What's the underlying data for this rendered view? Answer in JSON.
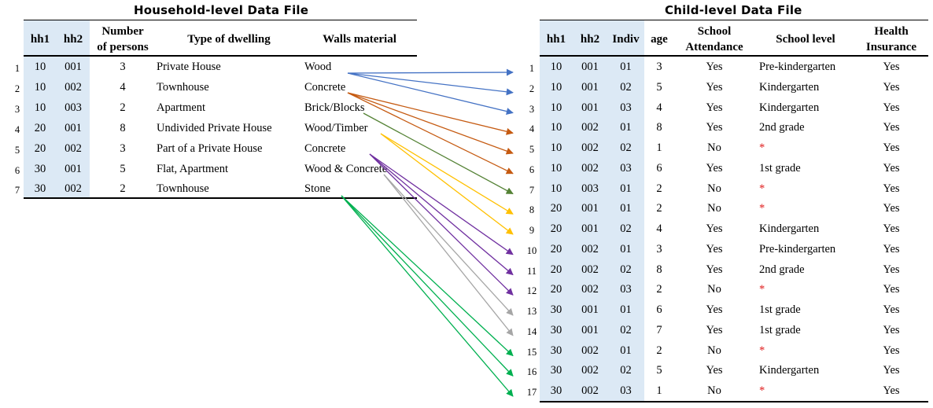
{
  "household": {
    "title": "Household-level Data File",
    "columns": [
      "hh1",
      "hh2",
      "Number of persons",
      "Type of dwelling",
      "Walls material"
    ],
    "header_lines": [
      [
        "hh1"
      ],
      [
        "hh2"
      ],
      [
        "Number",
        "of persons"
      ],
      [
        "Type of dwelling"
      ],
      [
        "Walls material"
      ]
    ],
    "rows": [
      {
        "n": "1",
        "hh1": "10",
        "hh2": "001",
        "persons": "3",
        "dwelling": "Private House",
        "walls": "Wood"
      },
      {
        "n": "2",
        "hh1": "10",
        "hh2": "002",
        "persons": "4",
        "dwelling": "Townhouse",
        "walls": "Concrete"
      },
      {
        "n": "3",
        "hh1": "10",
        "hh2": "003",
        "persons": "2",
        "dwelling": "Apartment",
        "walls": "Brick/Blocks"
      },
      {
        "n": "4",
        "hh1": "20",
        "hh2": "001",
        "persons": "8",
        "dwelling": "Undivided Private House",
        "walls": "Wood/Timber"
      },
      {
        "n": "5",
        "hh1": "20",
        "hh2": "002",
        "persons": "3",
        "dwelling": "Part of a Private House",
        "walls": "Concrete"
      },
      {
        "n": "6",
        "hh1": "30",
        "hh2": "001",
        "persons": "5",
        "dwelling": "Flat, Apartment",
        "walls": "Wood & Concrete"
      },
      {
        "n": "7",
        "hh1": "30",
        "hh2": "002",
        "persons": "2",
        "dwelling": "Townhouse",
        "walls": "Stone"
      }
    ]
  },
  "child": {
    "title": "Child-level Data File",
    "columns": [
      "hh1",
      "hh2",
      "Indiv",
      "age",
      "School Attendance",
      "School level",
      "Health Insurance"
    ],
    "header_lines": [
      [
        "hh1"
      ],
      [
        "hh2"
      ],
      [
        "Indiv"
      ],
      [
        "age"
      ],
      [
        "School",
        "Attendance"
      ],
      [
        "School level"
      ],
      [
        "Health",
        "Insurance"
      ]
    ],
    "rows": [
      {
        "n": "1",
        "hh1": "10",
        "hh2": "001",
        "indiv": "01",
        "age": "3",
        "attend": "Yes",
        "level": "Pre-kindergarten",
        "insurance": "Yes"
      },
      {
        "n": "2",
        "hh1": "10",
        "hh2": "001",
        "indiv": "02",
        "age": "5",
        "attend": "Yes",
        "level": "Kindergarten",
        "insurance": "Yes"
      },
      {
        "n": "3",
        "hh1": "10",
        "hh2": "001",
        "indiv": "03",
        "age": "4",
        "attend": "Yes",
        "level": "Kindergarten",
        "insurance": "Yes"
      },
      {
        "n": "4",
        "hh1": "10",
        "hh2": "002",
        "indiv": "01",
        "age": "8",
        "attend": "Yes",
        "level": "2nd grade",
        "insurance": "Yes"
      },
      {
        "n": "5",
        "hh1": "10",
        "hh2": "002",
        "indiv": "02",
        "age": "1",
        "attend": "No",
        "level": "*",
        "insurance": "Yes"
      },
      {
        "n": "6",
        "hh1": "10",
        "hh2": "002",
        "indiv": "03",
        "age": "6",
        "attend": "Yes",
        "level": "1st grade",
        "insurance": "Yes"
      },
      {
        "n": "7",
        "hh1": "10",
        "hh2": "003",
        "indiv": "01",
        "age": "2",
        "attend": "No",
        "level": "*",
        "insurance": "Yes"
      },
      {
        "n": "8",
        "hh1": "20",
        "hh2": "001",
        "indiv": "01",
        "age": "2",
        "attend": "No",
        "level": "*",
        "insurance": "Yes"
      },
      {
        "n": "9",
        "hh1": "20",
        "hh2": "001",
        "indiv": "02",
        "age": "4",
        "attend": "Yes",
        "level": "Kindergarten",
        "insurance": "Yes"
      },
      {
        "n": "10",
        "hh1": "20",
        "hh2": "002",
        "indiv": "01",
        "age": "3",
        "attend": "Yes",
        "level": "Pre-kindergarten",
        "insurance": "Yes"
      },
      {
        "n": "11",
        "hh1": "20",
        "hh2": "002",
        "indiv": "02",
        "age": "8",
        "attend": "Yes",
        "level": "2nd grade",
        "insurance": "Yes"
      },
      {
        "n": "12",
        "hh1": "20",
        "hh2": "002",
        "indiv": "03",
        "age": "2",
        "attend": "No",
        "level": "*",
        "insurance": "Yes"
      },
      {
        "n": "13",
        "hh1": "30",
        "hh2": "001",
        "indiv": "01",
        "age": "6",
        "attend": "Yes",
        "level": "1st grade",
        "insurance": "Yes"
      },
      {
        "n": "14",
        "hh1": "30",
        "hh2": "001",
        "indiv": "02",
        "age": "7",
        "attend": "Yes",
        "level": "1st grade",
        "insurance": "Yes"
      },
      {
        "n": "15",
        "hh1": "30",
        "hh2": "002",
        "indiv": "01",
        "age": "2",
        "attend": "No",
        "level": "*",
        "insurance": "Yes"
      },
      {
        "n": "16",
        "hh1": "30",
        "hh2": "002",
        "indiv": "02",
        "age": "5",
        "attend": "Yes",
        "level": "Kindergarten",
        "insurance": "Yes"
      },
      {
        "n": "17",
        "hh1": "30",
        "hh2": "002",
        "indiv": "03",
        "age": "1",
        "attend": "No",
        "level": "*",
        "insurance": "Yes"
      }
    ]
  },
  "links": [
    {
      "from": 1,
      "to": [
        1,
        2,
        3
      ],
      "color": "#4472c4"
    },
    {
      "from": 2,
      "to": [
        4,
        5,
        6
      ],
      "color": "#c55a11"
    },
    {
      "from": 3,
      "to": [
        7
      ],
      "color": "#548235"
    },
    {
      "from": 4,
      "to": [
        8,
        9
      ],
      "color": "#ffc000"
    },
    {
      "from": 5,
      "to": [
        10,
        11,
        12
      ],
      "color": "#7030a0"
    },
    {
      "from": 6,
      "to": [
        13,
        14
      ],
      "color": "#a6a6a6"
    },
    {
      "from": 7,
      "to": [
        15,
        16,
        17
      ],
      "color": "#00b050"
    }
  ],
  "colors": {
    "band": "#dce9f5",
    "missing_marker": "#e02020"
  }
}
